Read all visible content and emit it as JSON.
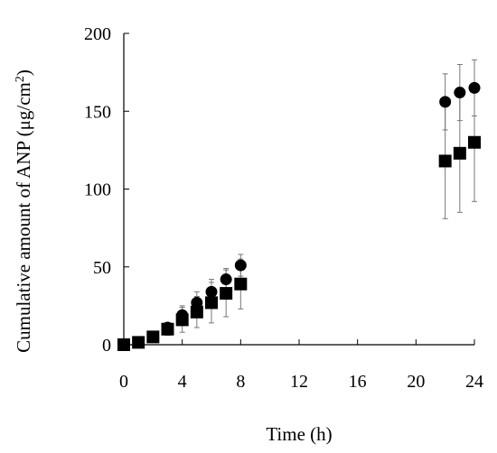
{
  "chart_data": {
    "type": "scatter",
    "xlabel": "Time (h)",
    "ylabel": "Cumulative amount of ANP (μg/cm",
    "ylabel_sup": "2",
    "ylabel_end": ")",
    "xlim": [
      0,
      24
    ],
    "ylim": [
      0,
      200
    ],
    "xticks": [
      0,
      4,
      8,
      12,
      16,
      20,
      24
    ],
    "yticks": [
      0,
      50,
      100,
      150,
      200
    ],
    "grid": false,
    "legend": "none",
    "series": [
      {
        "marker": "circle",
        "color": "#000000",
        "x": [
          0,
          1,
          2,
          3,
          4,
          5,
          6,
          7,
          8,
          22,
          23,
          24
        ],
        "y": [
          0,
          1.5,
          5,
          11,
          19,
          27,
          34,
          42,
          51,
          156,
          162,
          165
        ],
        "err": [
          0,
          1,
          1.5,
          3,
          6,
          7,
          8,
          7,
          7,
          18,
          18,
          18
        ]
      },
      {
        "marker": "square",
        "color": "#000000",
        "x": [
          0,
          1,
          2,
          3,
          4,
          5,
          6,
          7,
          8,
          22,
          23,
          24
        ],
        "y": [
          0,
          1.5,
          5,
          10,
          16,
          21,
          27,
          33,
          39,
          118,
          123,
          130
        ],
        "err": [
          0,
          1,
          1.5,
          4,
          8,
          10,
          13,
          15,
          16,
          37,
          38,
          38
        ]
      }
    ]
  }
}
